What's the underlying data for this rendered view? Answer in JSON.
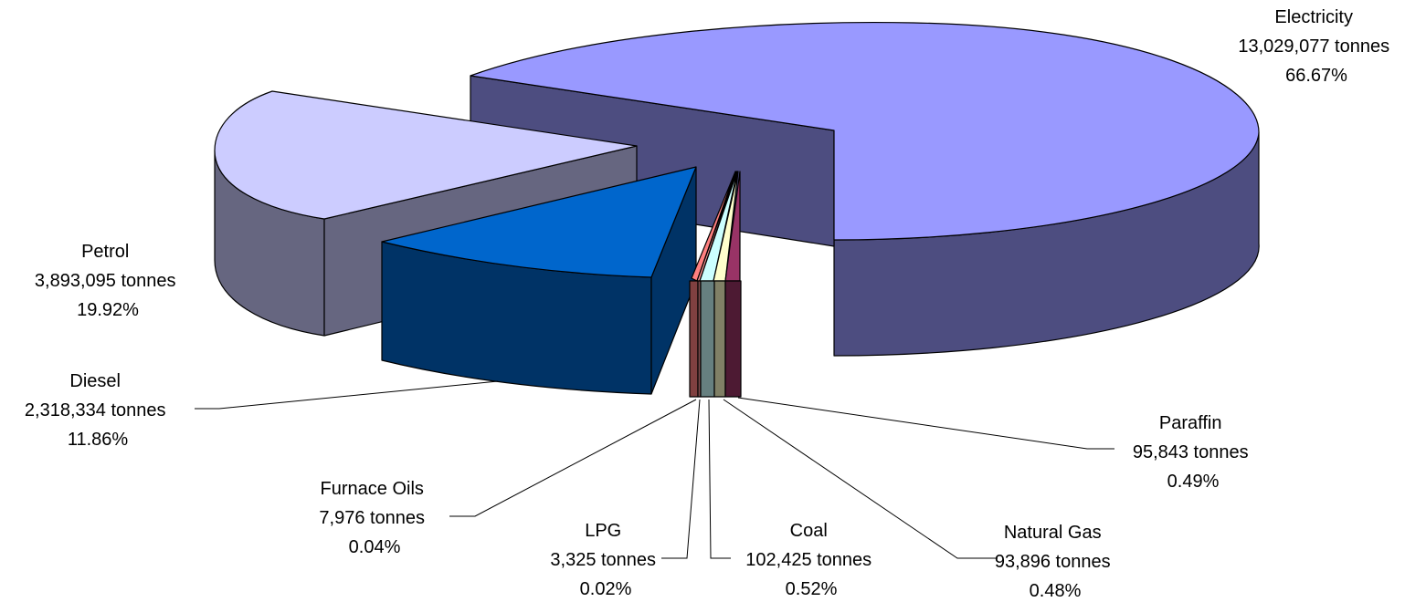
{
  "chart_data": {
    "type": "pie",
    "variant": "3d-exploded",
    "legend": "none",
    "units": "tonnes",
    "series": [
      {
        "name": "Electricity",
        "value": 13029077,
        "value_label": "13,029,077 tonnes",
        "percent_label": "66.67%",
        "color": "#9999FF",
        "side_color": "#4D4D80"
      },
      {
        "name": "Petrol",
        "value": 3893095,
        "value_label": "3,893,095 tonnes",
        "percent_label": "19.92%",
        "color": "#CCCCFF",
        "side_color": "#666680"
      },
      {
        "name": "Diesel",
        "value": 2318334,
        "value_label": "2,318,334 tonnes",
        "percent_label": "11.86%",
        "color": "#0066CC",
        "side_color": "#003366"
      },
      {
        "name": "Furnace Oils",
        "value": 7976,
        "value_label": "7,976 tonnes",
        "percent_label": "0.04%",
        "color": "#FF8080",
        "side_color": "#804040"
      },
      {
        "name": "LPG",
        "value": 3325,
        "value_label": "3,325 tonnes",
        "percent_label": "0.02%",
        "color": "#FF9999",
        "side_color": "#804D4D"
      },
      {
        "name": "Coal",
        "value": 102425,
        "value_label": "102,425 tonnes",
        "percent_label": "0.52%",
        "color": "#CCFFFF",
        "side_color": "#668080"
      },
      {
        "name": "Natural Gas",
        "value": 93896,
        "value_label": "93,896 tonnes",
        "percent_label": "0.48%",
        "color": "#FFFFCC",
        "side_color": "#808066"
      },
      {
        "name": "Paraffin",
        "value": 95843,
        "value_label": "95,843 tonnes",
        "percent_label": "0.49%",
        "color": "#993366",
        "side_color": "#4D1A33"
      }
    ]
  }
}
